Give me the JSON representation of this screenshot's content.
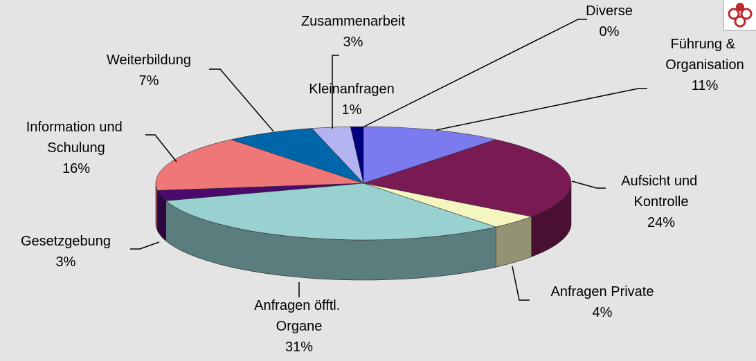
{
  "chart_data": {
    "type": "pie",
    "categories": [
      "Diverse",
      "Führung & Organisation",
      "Aufsicht und Kontrolle",
      "Anfragen Private",
      "Anfragen öfftl. Organe",
      "Gesetzgebung",
      "Information und Schulung",
      "Weiterbildung",
      "Zusammenarbeit",
      "Kleinanfragen"
    ],
    "values": [
      0,
      11,
      24,
      4,
      31,
      3,
      16,
      7,
      3,
      1
    ],
    "value_labels": [
      "0%",
      "11%",
      "24%",
      "4%",
      "31%",
      "3%",
      "16%",
      "7%",
      "3%",
      "1%"
    ],
    "colors": [
      "#000066",
      "#7b7bef",
      "#7a1a55",
      "#f5f5c0",
      "#99d0d0",
      "#4b0a6e",
      "#ef7777",
      "#0066aa",
      "#b4b4f2",
      "#000080"
    ]
  }
}
